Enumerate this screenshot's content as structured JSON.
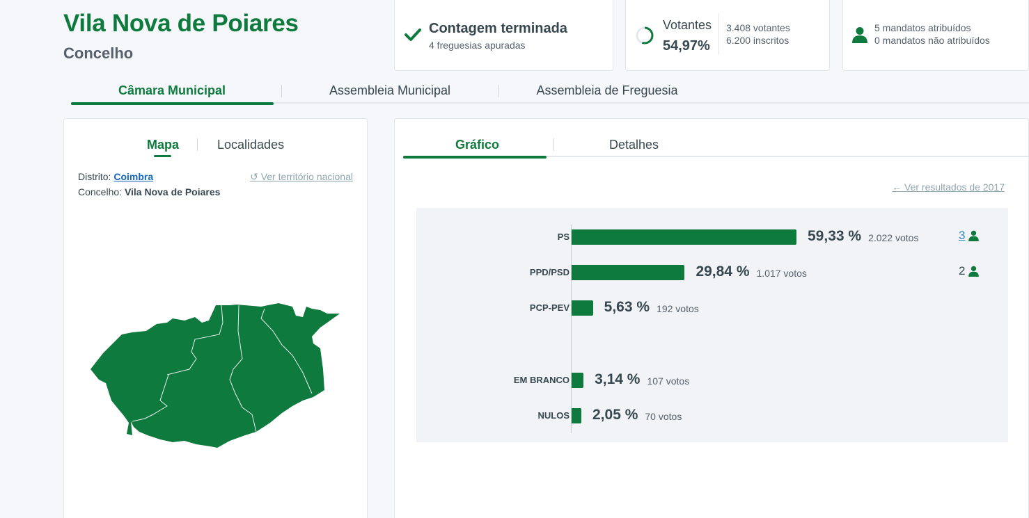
{
  "header": {
    "title": "Vila Nova de Poiares",
    "subtitle": "Concelho"
  },
  "status": {
    "title": "Contagem terminada",
    "subtitle": "4 freguesias apuradas",
    "icon": "check-icon"
  },
  "votantes": {
    "label": "Votantes",
    "percent": "54,97%",
    "votantes": "3.408 votantes",
    "inscritos": "6.200 inscritos",
    "turnout_fraction": 0.5497
  },
  "mandatos": {
    "atribuidos": "5 mandatos atribuídos",
    "nao_atribuidos": "0 mandatos não atribuídos"
  },
  "tabs": [
    {
      "label": "Câmara Municipal",
      "active": true
    },
    {
      "label": "Assembleia Municipal",
      "active": false
    },
    {
      "label": "Assembleia de Freguesia",
      "active": false
    }
  ],
  "left_panel": {
    "tabs": [
      {
        "label": "Mapa",
        "active": true
      },
      {
        "label": "Localidades",
        "active": false
      }
    ],
    "distrito_label": "Distrito:",
    "distrito_value": "Coimbra",
    "concelho_label": "Concelho:",
    "concelho_value": "Vila Nova de Poiares",
    "ver_territorio": "Ver território nacional"
  },
  "right_panel": {
    "tabs": [
      {
        "label": "Gráfico",
        "active": true
      },
      {
        "label": "Detalhes",
        "active": false
      }
    ],
    "ver_resultados": "Ver resultados de 2017"
  },
  "colors": {
    "brand_green": "#0e7a3d",
    "text": "#37474f",
    "link": "#1565c0"
  },
  "chart_data": {
    "type": "bar",
    "orientation": "horizontal",
    "categories": [
      "PS",
      "PPD/PSD",
      "PCP-PEV",
      "EM BRANCO",
      "NULOS"
    ],
    "values": [
      59.33,
      29.84,
      5.63,
      3.14,
      2.05
    ],
    "value_labels": [
      "59,33 %",
      "29,84 %",
      "5,63 %",
      "3,14 %",
      "2,05 %"
    ],
    "votes": [
      "2.022 votos",
      "1.017 votos",
      "192 votos",
      "107 votos",
      "70 votos"
    ],
    "seats": [
      "3",
      "2",
      "",
      "",
      ""
    ],
    "seats_linked": [
      true,
      false,
      false,
      false,
      false
    ]
  }
}
